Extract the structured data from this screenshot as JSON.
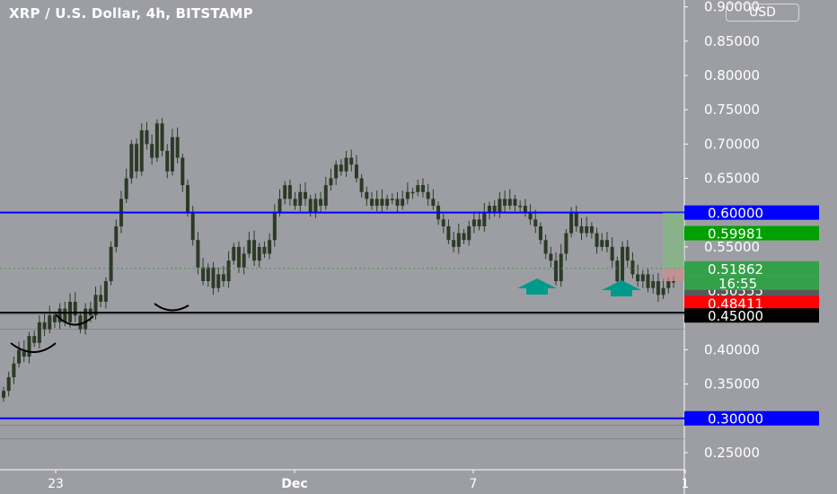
{
  "header": {
    "title": "XRP / U.S. Dollar, 4h, BITSTAMP",
    "currency_button": "USD",
    "countdown": "16:55"
  },
  "colors": {
    "background": "#9d9ea4",
    "candle": "#2c3a26",
    "level_line": "#0000ff",
    "support_line": "#000000",
    "arrow": "#009a8a",
    "tag_blue": "#0000ff",
    "tag_green": "#00a000",
    "tag_green_light": "#35a04a",
    "tag_gray": "#58585c",
    "tag_red": "#ff0000",
    "tag_black": "#000000"
  },
  "chart_data": {
    "type": "candlestick",
    "title": "XRP / U.S. Dollar, 4h, BITSTAMP",
    "ylim": [
      0.225,
      0.91
    ],
    "y_ticks": [
      "0.90000",
      "0.85000",
      "0.80000",
      "0.75000",
      "0.70000",
      "0.65000",
      "0.60000",
      "0.55000",
      "0.50000",
      "0.45000",
      "0.40000",
      "0.35000",
      "0.30000",
      "0.25000"
    ],
    "x_ticks": [
      "23",
      "Dec",
      "7",
      "1"
    ],
    "horizontal_levels": [
      {
        "price": 0.6,
        "style": "blue"
      },
      {
        "price": 0.3,
        "style": "blue"
      },
      {
        "price": 0.4541,
        "style": "black"
      }
    ],
    "price_tags": [
      {
        "label": "0.60000",
        "price": 0.6,
        "style": "blue"
      },
      {
        "label": "0.59981",
        "price": 0.57,
        "style": "green"
      },
      {
        "label": "0.51862",
        "price": 0.51862,
        "style": "green_light"
      },
      {
        "label": "0.50555",
        "price": 0.487,
        "style": "gray"
      },
      {
        "label": "0.48411",
        "price": 0.468,
        "style": "red"
      },
      {
        "label": "0.45000",
        "price": 0.45,
        "style": "black"
      },
      {
        "label": "0.30000",
        "price": 0.3,
        "style": "blue"
      }
    ],
    "closes": [
      0.34,
      0.36,
      0.38,
      0.4,
      0.39,
      0.42,
      0.41,
      0.44,
      0.43,
      0.45,
      0.44,
      0.46,
      0.44,
      0.47,
      0.45,
      0.43,
      0.46,
      0.45,
      0.48,
      0.47,
      0.5,
      0.55,
      0.58,
      0.62,
      0.65,
      0.7,
      0.66,
      0.72,
      0.7,
      0.68,
      0.73,
      0.69,
      0.66,
      0.71,
      0.68,
      0.64,
      0.6,
      0.56,
      0.52,
      0.5,
      0.52,
      0.49,
      0.51,
      0.5,
      0.53,
      0.55,
      0.52,
      0.54,
      0.56,
      0.53,
      0.55,
      0.54,
      0.56,
      0.6,
      0.62,
      0.64,
      0.62,
      0.61,
      0.63,
      0.62,
      0.6,
      0.62,
      0.61,
      0.64,
      0.65,
      0.67,
      0.66,
      0.68,
      0.67,
      0.65,
      0.63,
      0.62,
      0.61,
      0.62,
      0.61,
      0.62,
      0.62,
      0.61,
      0.62,
      0.63,
      0.63,
      0.64,
      0.63,
      0.62,
      0.61,
      0.59,
      0.58,
      0.56,
      0.55,
      0.57,
      0.56,
      0.58,
      0.59,
      0.58,
      0.6,
      0.61,
      0.6,
      0.62,
      0.61,
      0.62,
      0.61,
      0.61,
      0.6,
      0.59,
      0.58,
      0.56,
      0.54,
      0.53,
      0.5,
      0.54,
      0.57,
      0.6,
      0.58,
      0.57,
      0.58,
      0.57,
      0.55,
      0.56,
      0.55,
      0.53,
      0.5,
      0.55,
      0.53,
      0.51,
      0.5,
      0.51,
      0.49,
      0.5,
      0.48,
      0.49,
      0.5,
      0.5
    ]
  }
}
